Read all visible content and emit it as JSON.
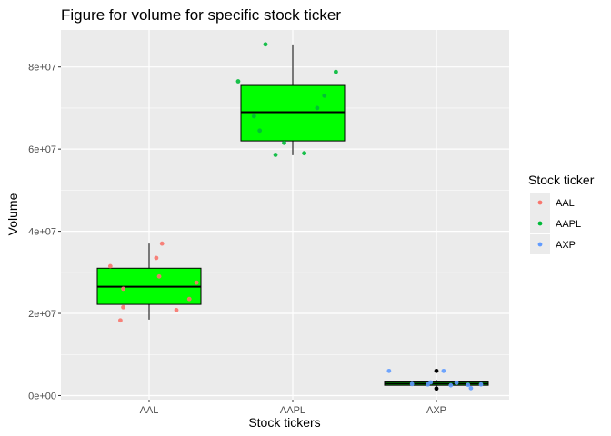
{
  "chart_data": {
    "type": "boxplot",
    "title": "Figure for volume for specific stock ticker",
    "xlabel": "Stock tickers",
    "ylabel": "Volume",
    "categories": [
      "AAL",
      "AAPL",
      "AXP"
    ],
    "y_tick_values": [
      0,
      20000000,
      40000000,
      60000000,
      80000000
    ],
    "y_tick_labels": [
      "0e+00",
      "2e+07",
      "4e+07",
      "6e+07",
      "8e+07"
    ],
    "ylim": [
      -1000000,
      89000000
    ],
    "box_fill": "#00ff00",
    "boxes": [
      {
        "category": "AAL",
        "min": 18500000,
        "q1": 22200000,
        "median": 26500000,
        "q3": 31000000,
        "max": 37000000
      },
      {
        "category": "AAPL",
        "min": 58500000,
        "q1": 62000000,
        "median": 69000000,
        "q3": 75500000,
        "max": 85500000
      },
      {
        "category": "AXP",
        "min": 2200000,
        "q1": 2500000,
        "median": 2900000,
        "q3": 3300000,
        "max": 3800000
      }
    ],
    "outliers": [
      {
        "category": "AXP",
        "y": 6000000
      },
      {
        "category": "AXP",
        "y": 1700000
      }
    ],
    "legend_title": "Stock ticker",
    "legend_position": "right",
    "series": [
      {
        "name": "AAL",
        "color": "#f8766d",
        "points": [
          {
            "x": -0.27,
            "y": 31500000
          },
          {
            "x": 0.09,
            "y": 37000000
          },
          {
            "x": 0.05,
            "y": 33500000
          },
          {
            "x": 0.07,
            "y": 29000000
          },
          {
            "x": 0.33,
            "y": 27500000
          },
          {
            "x": 0.28,
            "y": 23500000
          },
          {
            "x": -0.18,
            "y": 26000000
          },
          {
            "x": -0.18,
            "y": 21500000
          },
          {
            "x": 0.19,
            "y": 20800000
          },
          {
            "x": -0.2,
            "y": 18300000
          }
        ]
      },
      {
        "name": "AAPL",
        "color": "#00ba38",
        "points": [
          {
            "x": -0.19,
            "y": 85500000
          },
          {
            "x": 0.3,
            "y": 78800000
          },
          {
            "x": -0.38,
            "y": 76500000
          },
          {
            "x": 0.22,
            "y": 73000000
          },
          {
            "x": 0.17,
            "y": 70000000
          },
          {
            "x": -0.27,
            "y": 68000000
          },
          {
            "x": -0.23,
            "y": 64500000
          },
          {
            "x": -0.06,
            "y": 61500000
          },
          {
            "x": -0.12,
            "y": 58600000
          },
          {
            "x": 0.08,
            "y": 59000000
          }
        ]
      },
      {
        "name": "AXP",
        "color": "#619cff",
        "points": [
          {
            "x": -0.33,
            "y": 6000000
          },
          {
            "x": -0.17,
            "y": 2800000
          },
          {
            "x": -0.06,
            "y": 2700000
          },
          {
            "x": -0.04,
            "y": 3200000
          },
          {
            "x": 0.05,
            "y": 6000000
          },
          {
            "x": 0.1,
            "y": 2500000
          },
          {
            "x": 0.14,
            "y": 3100000
          },
          {
            "x": 0.22,
            "y": 2600000
          },
          {
            "x": 0.24,
            "y": 1800000
          },
          {
            "x": 0.31,
            "y": 2700000
          }
        ]
      }
    ]
  }
}
